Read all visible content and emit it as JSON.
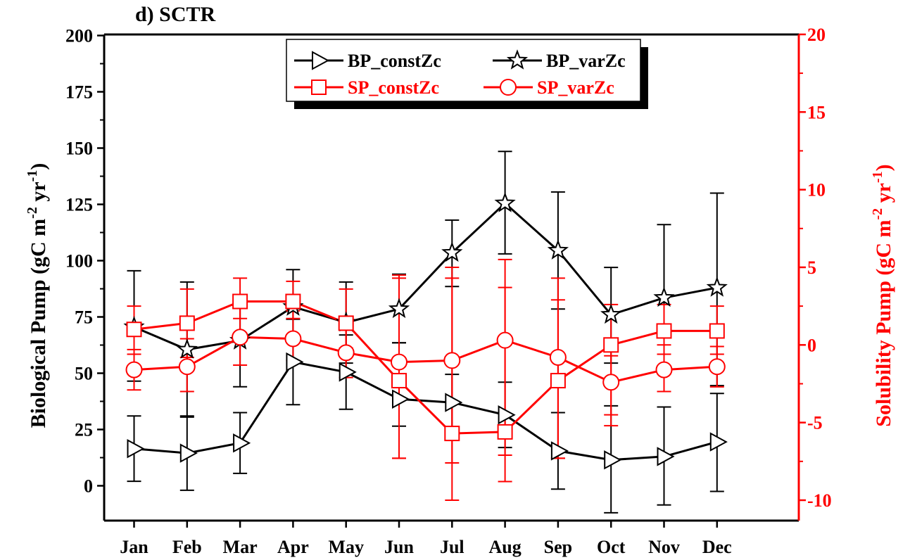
{
  "panel_title": "d) SCTR",
  "colors": {
    "left_axis": "#000000",
    "right_axis": "#ff0000",
    "bp": "#000000",
    "sp": "#ff0000"
  },
  "chart_data": {
    "type": "line",
    "title": "d) SCTR",
    "categories": [
      "Jan",
      "Feb",
      "Mar",
      "Apr",
      "May",
      "Jun",
      "Jul",
      "Aug",
      "Sep",
      "Oct",
      "Nov",
      "Dec"
    ],
    "y_left": {
      "label": "Biological Pump (gC m",
      "label_sup1": "-2",
      "label_mid": " yr",
      "label_sup2": "-1",
      "label_end": ")",
      "ylim": [
        -20,
        200
      ],
      "ticks": [
        0,
        25,
        50,
        75,
        100,
        125,
        150,
        175,
        200
      ]
    },
    "y_right": {
      "label": "Solubility Pump (gC m",
      "label_sup1": "-2",
      "label_mid": " yr",
      "label_sup2": "-1",
      "label_end": ")",
      "ylim": [
        -11,
        20
      ],
      "ticks": [
        -10,
        -5,
        0,
        5,
        10,
        15,
        20
      ]
    },
    "legend_position": "top-center",
    "series": [
      {
        "name": "BP_constZc",
        "axis": "left",
        "color": "#000000",
        "marker": "triangle-right",
        "values": [
          16.5,
          14.5,
          19,
          55,
          50.5,
          38.5,
          37,
          31.5,
          15.5,
          11.5,
          13,
          19.5
        ],
        "err_low": [
          2,
          -2,
          5.5,
          36,
          34,
          26.5,
          25.5,
          17,
          -1.5,
          -12,
          -8.5,
          -2.5
        ],
        "err_high": [
          31,
          31,
          32.5,
          74,
          67,
          63.5,
          49.5,
          46,
          32.5,
          35.5,
          35,
          41
        ]
      },
      {
        "name": "BP_varZc",
        "axis": "left",
        "color": "#000000",
        "marker": "star",
        "values": [
          70.5,
          60.5,
          64.5,
          79.5,
          72.5,
          78.5,
          103.5,
          125.5,
          104.5,
          76,
          83.5,
          88
        ],
        "err_low": [
          46.5,
          30.5,
          44,
          63.5,
          54.5,
          63.5,
          88.5,
          103,
          78.5,
          54.5,
          51.5,
          44.5
        ],
        "err_high": [
          95.5,
          90.5,
          84.5,
          96,
          90.5,
          94,
          118,
          148.5,
          130.5,
          97,
          116,
          130
        ]
      },
      {
        "name": "SP_constZc",
        "axis": "right",
        "color": "#ff0000",
        "marker": "square",
        "values": [
          1,
          1.4,
          2.8,
          2.8,
          1.4,
          -2.3,
          -5.7,
          -5.6,
          -2.3,
          0,
          0.9,
          0.9
        ],
        "err_low": [
          -0.6,
          -0.8,
          1.7,
          1.7,
          -0.2,
          -7.3,
          -10,
          -8.8,
          -7.3,
          -5.2,
          -0.6,
          -0.6
        ],
        "err_high": [
          2.5,
          3.6,
          4.3,
          4.1,
          3.6,
          4.5,
          5,
          5.5,
          4.3,
          2.6,
          2.6,
          2.5
        ]
      },
      {
        "name": "SP_varZc",
        "axis": "right",
        "color": "#ff0000",
        "marker": "circle",
        "values": [
          -1.6,
          -1.4,
          0.5,
          0.4,
          -0.5,
          -1.1,
          -1,
          0.3,
          -0.8,
          -2.4,
          -1.6,
          -1.4
        ],
        "err_low": [
          -2.9,
          -3,
          -1.3,
          -1,
          -2.1,
          -7.3,
          -7.6,
          -7.1,
          -7.3,
          -4.5,
          -3,
          -2.7
        ],
        "err_high": [
          -0.3,
          0.4,
          2.5,
          2.2,
          1.6,
          4.3,
          4.3,
          3.7,
          2.9,
          -0.7,
          0,
          -0.1
        ]
      }
    ]
  }
}
